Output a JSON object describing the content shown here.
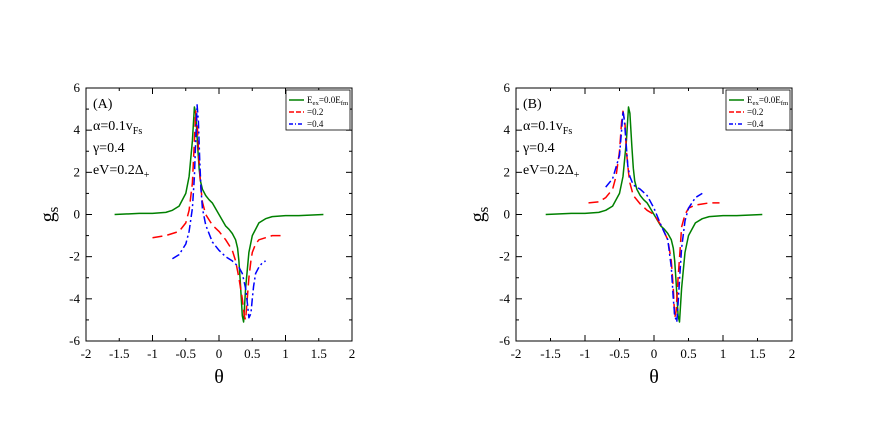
{
  "chart_data": [
    {
      "type": "line",
      "panel_label": "(A)",
      "annotations": [
        {
          "main": "α=0.1v",
          "sub": "Fs"
        },
        {
          "main": "γ=0.4",
          "sub": ""
        },
        {
          "main": "eV=0.2Δ",
          "sub": "+"
        }
      ],
      "xlabel": "θ",
      "ylabel": {
        "main": "g",
        "sub": "s"
      },
      "xlim": [
        -2,
        2
      ],
      "ylim": [
        -6,
        6
      ],
      "xticks": [
        "-2",
        "-1.5",
        "-1",
        "-0.5",
        "0",
        "0.5",
        "1",
        "1.5",
        "2"
      ],
      "yticks": [
        "-6",
        "-4",
        "-2",
        "0",
        "2",
        "4",
        "6"
      ],
      "legend": {
        "position": "top-right",
        "entries": [
          {
            "label_main": "E",
            "label_sub": "ex",
            "label_mid": "=0.0E",
            "label_sub2": "fm"
          },
          {
            "label_main": "=0.2",
            "label_sub": "",
            "label_mid": "",
            "label_sub2": ""
          },
          {
            "label_main": "=0.4",
            "label_sub": "",
            "label_mid": "",
            "label_sub2": ""
          }
        ]
      },
      "series": [
        {
          "name": "Eex=0.0Efm",
          "color": "#008000",
          "dash": "solid",
          "x": [
            -1.57,
            -1.2,
            -1.0,
            -0.8,
            -0.7,
            -0.6,
            -0.5,
            -0.45,
            -0.4,
            -0.37,
            -0.35,
            -0.32,
            -0.3,
            -0.28,
            -0.25,
            -0.2,
            -0.15,
            -0.1,
            0,
            0.1,
            0.15,
            0.2,
            0.25,
            0.28,
            0.3,
            0.32,
            0.35,
            0.37,
            0.4,
            0.45,
            0.5,
            0.6,
            0.7,
            0.8,
            1.0,
            1.2,
            1.57
          ],
          "y": [
            0,
            0.05,
            0.05,
            0.1,
            0.2,
            0.4,
            1.0,
            1.8,
            3.5,
            5.1,
            4.8,
            3.2,
            2.2,
            1.6,
            1.2,
            0.9,
            0.7,
            0.55,
            0,
            -0.55,
            -0.7,
            -0.9,
            -1.2,
            -1.6,
            -2.2,
            -3.2,
            -4.8,
            -5.1,
            -3.5,
            -1.8,
            -1.0,
            -0.4,
            -0.2,
            -0.1,
            -0.05,
            -0.05,
            0
          ]
        },
        {
          "name": "=0.2",
          "color": "#ff0000",
          "dash": "longdash",
          "x": [
            -1.0,
            -0.8,
            -0.6,
            -0.5,
            -0.45,
            -0.4,
            -0.37,
            -0.35,
            -0.33,
            -0.3,
            -0.28,
            -0.25,
            -0.2,
            -0.1,
            0,
            0.1,
            0.2,
            0.25,
            0.3,
            0.35,
            0.38,
            0.4,
            0.42,
            0.45,
            0.48,
            0.5,
            0.55,
            0.6,
            0.7,
            0.8,
            1.0
          ],
          "y": [
            -1.1,
            -1.0,
            -0.8,
            -0.4,
            0.2,
            1.5,
            3.5,
            4.9,
            4.4,
            2.5,
            1.5,
            0.6,
            0,
            -0.5,
            -0.8,
            -1.2,
            -1.7,
            -2.2,
            -3.0,
            -4.0,
            -4.8,
            -5.0,
            -4.2,
            -3.0,
            -2.2,
            -1.8,
            -1.4,
            -1.2,
            -1.1,
            -1.0,
            -1.0
          ]
        },
        {
          "name": "=0.4",
          "color": "#0000ff",
          "dash": "dashdot",
          "x": [
            -0.7,
            -0.6,
            -0.5,
            -0.45,
            -0.4,
            -0.37,
            -0.35,
            -0.33,
            -0.31,
            -0.29,
            -0.27,
            -0.25,
            -0.2,
            -0.1,
            0,
            0.1,
            0.2,
            0.3,
            0.35,
            0.4,
            0.43,
            0.45,
            0.48,
            0.5,
            0.52,
            0.55,
            0.6,
            0.65,
            0.7
          ],
          "y": [
            -2.1,
            -1.9,
            -1.4,
            -0.8,
            0.3,
            1.8,
            3.5,
            5.2,
            4.4,
            2.6,
            1.2,
            0.3,
            -0.5,
            -1.3,
            -1.7,
            -2.0,
            -2.2,
            -2.5,
            -2.8,
            -3.5,
            -4.3,
            -4.9,
            -4.7,
            -4.0,
            -3.4,
            -2.8,
            -2.5,
            -2.3,
            -2.2
          ]
        }
      ]
    },
    {
      "type": "line",
      "panel_label": "(B)",
      "annotations": [
        {
          "main": "α=0.1v",
          "sub": "Fs"
        },
        {
          "main": "γ=0.4",
          "sub": ""
        },
        {
          "main": "eV=0.2Δ",
          "sub": "+"
        }
      ],
      "xlabel": "θ",
      "ylabel": {
        "main": "g",
        "sub": "s"
      },
      "xlim": [
        -2,
        2
      ],
      "ylim": [
        -6,
        6
      ],
      "xticks": [
        "-2",
        "-1.5",
        "-1",
        "-0.5",
        "0",
        "0.5",
        "1",
        "1.5",
        "2"
      ],
      "yticks": [
        "-6",
        "-4",
        "-2",
        "0",
        "2",
        "4",
        "6"
      ],
      "legend": {
        "position": "top-right",
        "entries": [
          {
            "label_main": "E",
            "label_sub": "ex",
            "label_mid": "=0.0E",
            "label_sub2": "fm"
          },
          {
            "label_main": "=0.2",
            "label_sub": "",
            "label_mid": "",
            "label_sub2": ""
          },
          {
            "label_main": "=0.4",
            "label_sub": "",
            "label_mid": "",
            "label_sub2": ""
          }
        ]
      },
      "series": [
        {
          "name": "Eex=0.0Efm",
          "color": "#008000",
          "dash": "solid",
          "x": [
            -1.57,
            -1.2,
            -1.0,
            -0.8,
            -0.7,
            -0.6,
            -0.5,
            -0.45,
            -0.4,
            -0.37,
            -0.35,
            -0.32,
            -0.3,
            -0.28,
            -0.25,
            -0.2,
            -0.15,
            -0.1,
            0,
            0.1,
            0.15,
            0.2,
            0.25,
            0.28,
            0.3,
            0.32,
            0.35,
            0.37,
            0.4,
            0.45,
            0.5,
            0.6,
            0.7,
            0.8,
            1.0,
            1.2,
            1.57
          ],
          "y": [
            0,
            0.05,
            0.05,
            0.1,
            0.2,
            0.4,
            1.0,
            1.8,
            3.5,
            5.1,
            4.8,
            3.2,
            2.2,
            1.6,
            1.2,
            0.9,
            0.7,
            0.55,
            0,
            -0.55,
            -0.7,
            -0.9,
            -1.2,
            -1.6,
            -2.2,
            -3.2,
            -4.8,
            -5.1,
            -3.5,
            -1.8,
            -1.0,
            -0.4,
            -0.2,
            -0.1,
            -0.05,
            -0.05,
            0
          ]
        },
        {
          "name": "=0.2",
          "color": "#ff0000",
          "dash": "longdash",
          "x": [
            -0.95,
            -0.8,
            -0.7,
            -0.6,
            -0.55,
            -0.5,
            -0.47,
            -0.45,
            -0.42,
            -0.4,
            -0.37,
            -0.35,
            -0.3,
            -0.2,
            -0.1,
            0,
            0.1,
            0.2,
            0.25,
            0.28,
            0.3,
            0.32,
            0.35,
            0.38,
            0.4,
            0.45,
            0.5,
            0.6,
            0.7,
            0.8,
            0.95
          ],
          "y": [
            0.55,
            0.6,
            0.8,
            1.2,
            1.8,
            3.0,
            4.4,
            4.9,
            4.3,
            3.0,
            2.0,
            1.5,
            0.9,
            0.5,
            0.2,
            0,
            -0.5,
            -1.2,
            -2.2,
            -3.5,
            -4.9,
            -4.6,
            -3.0,
            -1.6,
            -0.6,
            0,
            0.3,
            0.45,
            0.5,
            0.55,
            0.55
          ]
        },
        {
          "name": "=0.4",
          "color": "#0000ff",
          "dash": "dashdot",
          "x": [
            -0.7,
            -0.6,
            -0.5,
            -0.47,
            -0.45,
            -0.43,
            -0.4,
            -0.38,
            -0.35,
            -0.3,
            -0.2,
            -0.1,
            0,
            0.1,
            0.2,
            0.25,
            0.28,
            0.3,
            0.33,
            0.35,
            0.38,
            0.4,
            0.45,
            0.5,
            0.6,
            0.7
          ],
          "y": [
            1.3,
            1.7,
            2.8,
            4.0,
            4.9,
            4.5,
            3.2,
            2.3,
            1.8,
            1.4,
            1.2,
            0.9,
            0.3,
            -0.5,
            -1.2,
            -2.5,
            -4.0,
            -4.8,
            -5.1,
            -4.2,
            -2.6,
            -1.6,
            -0.3,
            0.3,
            0.8,
            1.0
          ]
        }
      ]
    }
  ]
}
